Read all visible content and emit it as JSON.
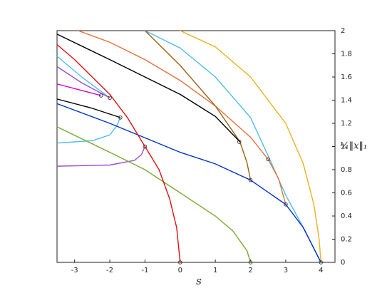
{
  "chart_data": {
    "type": "line",
    "x_label": "s",
    "y_label": "¼‖x‖₁",
    "xlim": [
      -3.5,
      4.4
    ],
    "ylim": [
      0,
      2
    ],
    "xticks": [
      -3,
      -2,
      -1,
      0,
      1,
      2,
      3,
      4
    ],
    "yticks": [
      0,
      0.2,
      0.4,
      0.6,
      0.8,
      1,
      1.2,
      1.4,
      1.6,
      1.8,
      2
    ],
    "series": [
      {
        "color": "#EDB120",
        "x": [
          0,
          1,
          2,
          3,
          3.5,
          3.8,
          3.95,
          4
        ],
        "values": [
          2,
          1.86,
          1.6,
          1.2,
          0.85,
          0.5,
          0.2,
          0
        ]
      },
      {
        "color": "#4DBEEE",
        "x": [
          -1,
          0,
          1,
          2,
          2.5,
          3,
          3.5,
          4
        ],
        "values": [
          2,
          1.85,
          1.6,
          1.25,
          0.92,
          0.58,
          0.3,
          0
        ]
      },
      {
        "color": "#4DBEEE",
        "x": [
          -3.5,
          -2.8,
          -2
        ],
        "values": [
          1.78,
          1.6,
          1.42
        ]
      },
      {
        "color": "#4DBEEE",
        "x": [
          -3.5,
          -2.5,
          -2,
          -1.8,
          -1.7
        ],
        "values": [
          1.03,
          1.05,
          1.1,
          1.18,
          1.25
        ]
      },
      {
        "color": "#E8703A",
        "x": [
          -2.9,
          -2,
          -1,
          0,
          1,
          2,
          2.5,
          2.8,
          3
        ],
        "values": [
          2,
          1.9,
          1.75,
          1.57,
          1.35,
          1.08,
          0.89,
          0.72,
          0.5
        ]
      },
      {
        "color": "#9A6112",
        "x": [
          -1,
          0,
          1,
          1.7,
          1.9,
          2
        ],
        "values": [
          2,
          1.7,
          1.35,
          1.04,
          0.86,
          0.71
        ]
      },
      {
        "color": "#000000",
        "x": [
          -3.5,
          -2,
          0,
          1,
          1.7
        ],
        "values": [
          1.97,
          1.75,
          1.45,
          1.26,
          1.04
        ]
      },
      {
        "color": "#000000",
        "x": [
          -3.5,
          -2.5,
          -1.7
        ],
        "values": [
          1.41,
          1.33,
          1.25
        ]
      },
      {
        "color": "#0033CC",
        "x": [
          -3.5,
          -2,
          0,
          1,
          2,
          3,
          3.5,
          4
        ],
        "values": [
          1.37,
          1.2,
          0.95,
          0.85,
          0.71,
          0.5,
          0.3,
          0
        ]
      },
      {
        "color": "#9B4FD6",
        "x": [
          -3.5,
          -2.8,
          -2
        ],
        "values": [
          1.69,
          1.55,
          1.42
        ]
      },
      {
        "color": "#9B4FD6",
        "x": [
          -3.5,
          -2,
          -1.3,
          -1.1,
          -1
        ],
        "values": [
          0.83,
          0.84,
          0.88,
          0.93,
          1
        ]
      },
      {
        "color": "#CC00CC",
        "x": [
          -3.5,
          -2.5,
          -2.25
        ],
        "values": [
          1.54,
          1.46,
          1.44
        ]
      },
      {
        "color": "#77AC30",
        "x": [
          -3.5,
          -2,
          -1,
          0,
          1,
          1.5,
          1.9,
          2
        ],
        "values": [
          1.17,
          0.95,
          0.8,
          0.6,
          0.4,
          0.27,
          0.1,
          0
        ]
      },
      {
        "color": "#E01010",
        "x": [
          -3.5,
          -3,
          -2.5,
          -2,
          -1.5,
          -1,
          -0.6,
          -0.3,
          -0.1,
          0
        ],
        "values": [
          1.88,
          1.75,
          1.6,
          1.45,
          1.25,
          1,
          0.8,
          0.55,
          0.3,
          0
        ]
      }
    ],
    "points": {
      "x": [
        -2.25,
        -2,
        -1.7,
        -1,
        1.68,
        2.5,
        2,
        3,
        0,
        2,
        4
      ],
      "values": [
        1.44,
        1.42,
        1.25,
        1,
        1.04,
        0.89,
        0.71,
        0.5,
        0,
        0,
        0
      ]
    }
  }
}
